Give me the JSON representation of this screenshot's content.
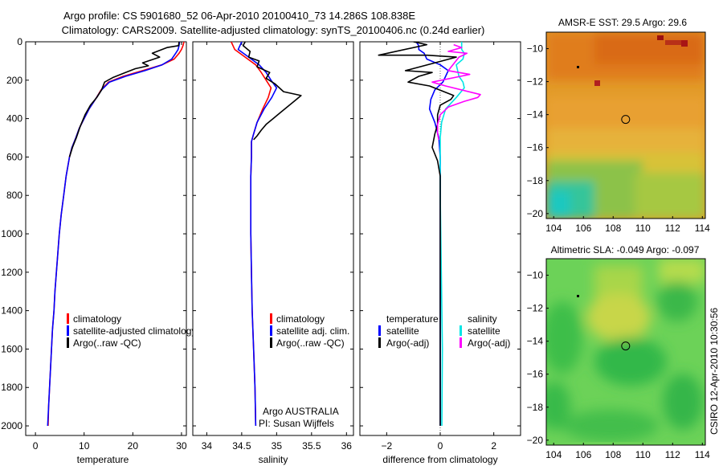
{
  "header": {
    "line1": "Argo profile: CS 5901680_52 06-Apr-2010 20100410_73 14.286S 108.838E",
    "line2": "Climatology: CARS2009. Satellite-adjusted climatology: synTS_20100406.nc (0.24d earlier)"
  },
  "colors": {
    "climatology": "#ff0000",
    "satellite": "#0000ff",
    "argo": "#000000",
    "sat_salinity": "#00e5e5",
    "argo_salinity": "#ff00ff"
  },
  "footer_credit": "CSIRO 12-Apr-2010 10:30:56",
  "chart_data": [
    {
      "type": "line",
      "xlabel": "temperature",
      "xlim": [
        -2,
        31
      ],
      "ylim": [
        2050,
        0
      ],
      "xticks": [
        0,
        10,
        20,
        30
      ],
      "yticks": [
        0,
        200,
        400,
        600,
        800,
        1000,
        1200,
        1400,
        1600,
        1800,
        2000
      ],
      "legend": [
        "climatology",
        "satellite-adjusted climatology",
        "Argo(..raw -QC)"
      ],
      "series": [
        {
          "name": "climatology",
          "color": "climatology",
          "points": [
            [
              30.5,
              0
            ],
            [
              30.3,
              20
            ],
            [
              30,
              40
            ],
            [
              29.5,
              60
            ],
            [
              28.5,
              90
            ],
            [
              26,
              120
            ],
            [
              22,
              150
            ],
            [
              18,
              180
            ],
            [
              15,
              210
            ],
            [
              13.5,
              250
            ],
            [
              12.3,
              300
            ],
            [
              11,
              350
            ],
            [
              10,
              400
            ],
            [
              9,
              450
            ],
            [
              8.3,
              500
            ],
            [
              7.5,
              550
            ],
            [
              7,
              600
            ],
            [
              6.3,
              700
            ],
            [
              5.8,
              800
            ],
            [
              5.3,
              900
            ],
            [
              4.9,
              1000
            ],
            [
              4.6,
              1100
            ],
            [
              4.3,
              1200
            ],
            [
              4,
              1300
            ],
            [
              3.8,
              1400
            ],
            [
              3.5,
              1500
            ],
            [
              3.3,
              1600
            ],
            [
              3.1,
              1700
            ],
            [
              2.9,
              1800
            ],
            [
              2.7,
              1900
            ],
            [
              2.6,
              2000
            ]
          ]
        },
        {
          "name": "satellite-adjusted climatology",
          "color": "satellite",
          "points": [
            [
              29.6,
              0
            ],
            [
              29.5,
              20
            ],
            [
              29.3,
              40
            ],
            [
              28.8,
              60
            ],
            [
              28,
              90
            ],
            [
              26,
              120
            ],
            [
              22.5,
              150
            ],
            [
              18.5,
              180
            ],
            [
              15.2,
              210
            ],
            [
              13.6,
              250
            ],
            [
              12.3,
              300
            ],
            [
              11,
              350
            ],
            [
              10,
              400
            ],
            [
              9,
              450
            ],
            [
              8.3,
              500
            ],
            [
              7.5,
              550
            ],
            [
              7,
              600
            ],
            [
              6.3,
              700
            ],
            [
              5.8,
              800
            ],
            [
              5.3,
              900
            ],
            [
              4.9,
              1000
            ],
            [
              4.6,
              1100
            ],
            [
              4.3,
              1200
            ],
            [
              4,
              1300
            ],
            [
              3.8,
              1400
            ],
            [
              3.5,
              1500
            ],
            [
              3.3,
              1600
            ],
            [
              3.1,
              1700
            ],
            [
              2.9,
              1800
            ],
            [
              2.7,
              1900
            ],
            [
              2.5,
              2000
            ]
          ]
        },
        {
          "name": "Argo(..raw -QC)",
          "color": "argo",
          "points": [
            [
              29.5,
              0
            ],
            [
              29.4,
              20
            ],
            [
              27,
              30
            ],
            [
              24,
              60
            ],
            [
              25.5,
              80
            ],
            [
              22,
              110
            ],
            [
              23.2,
              125
            ],
            [
              20.5,
              140
            ],
            [
              18.5,
              160
            ],
            [
              16,
              185
            ],
            [
              14.2,
              210
            ],
            [
              13.6,
              250
            ],
            [
              12.6,
              290
            ],
            [
              11.3,
              330
            ],
            [
              10.2,
              380
            ],
            [
              9.2,
              440
            ],
            [
              8.4,
              500
            ],
            [
              7.6,
              550
            ],
            [
              7,
              600
            ]
          ]
        }
      ]
    },
    {
      "type": "line",
      "xlabel": "salinity",
      "xlim": [
        33.8,
        36.1
      ],
      "ylim": [
        2050,
        0
      ],
      "xticks": [
        34,
        34.5,
        35,
        35.5,
        36
      ],
      "legend": [
        "climatology",
        "satellite adj. clim.",
        "Argo(..raw -QC)"
      ],
      "annotation": [
        "Argo AUSTRALIA",
        "PI: Susan Wijffels"
      ],
      "series": [
        {
          "name": "climatology",
          "color": "climatology",
          "points": [
            [
              34.35,
              0
            ],
            [
              34.4,
              40
            ],
            [
              34.55,
              80
            ],
            [
              34.7,
              120
            ],
            [
              34.78,
              160
            ],
            [
              34.85,
              200
            ],
            [
              34.92,
              240
            ],
            [
              34.88,
              290
            ],
            [
              34.8,
              350
            ],
            [
              34.72,
              420
            ],
            [
              34.67,
              480
            ],
            [
              34.64,
              520
            ],
            [
              34.64,
              600
            ],
            [
              34.63,
              700
            ],
            [
              34.63,
              800
            ],
            [
              34.63,
              1000
            ],
            [
              34.64,
              1200
            ],
            [
              34.65,
              1400
            ],
            [
              34.67,
              1600
            ],
            [
              34.69,
              1800
            ],
            [
              34.7,
              2000
            ]
          ]
        },
        {
          "name": "satellite adj. clim.",
          "color": "satellite",
          "points": [
            [
              34.5,
              0
            ],
            [
              34.45,
              40
            ],
            [
              34.6,
              80
            ],
            [
              34.75,
              120
            ],
            [
              34.85,
              160
            ],
            [
              34.92,
              200
            ],
            [
              35,
              240
            ],
            [
              34.93,
              290
            ],
            [
              34.82,
              350
            ],
            [
              34.72,
              420
            ],
            [
              34.67,
              480
            ],
            [
              34.64,
              520
            ],
            [
              34.64,
              600
            ],
            [
              34.63,
              700
            ],
            [
              34.63,
              800
            ],
            [
              34.63,
              1000
            ],
            [
              34.64,
              1200
            ],
            [
              34.65,
              1400
            ],
            [
              34.67,
              1600
            ],
            [
              34.69,
              1800
            ],
            [
              34.7,
              2000
            ]
          ]
        },
        {
          "name": "Argo(..raw -QC)",
          "color": "argo",
          "points": [
            [
              34.55,
              0
            ],
            [
              34.52,
              20
            ],
            [
              34.62,
              50
            ],
            [
              34.6,
              80
            ],
            [
              34.75,
              100
            ],
            [
              34.72,
              130
            ],
            [
              34.9,
              160
            ],
            [
              34.85,
              190
            ],
            [
              34.98,
              220
            ],
            [
              35.1,
              260
            ],
            [
              35.35,
              280
            ],
            [
              35.25,
              310
            ],
            [
              35.15,
              340
            ],
            [
              35.05,
              370
            ],
            [
              34.95,
              400
            ],
            [
              34.85,
              430
            ],
            [
              34.78,
              460
            ],
            [
              34.72,
              490
            ],
            [
              34.67,
              510
            ]
          ]
        }
      ]
    },
    {
      "type": "line",
      "xlabel": "difference from climatology",
      "xlim": [
        -3,
        3
      ],
      "ylim": [
        2050,
        0
      ],
      "xticks": [
        -2,
        0,
        2
      ],
      "legend_groups": [
        {
          "title": "temperature",
          "items": [
            "satellite",
            "Argo(-adj)"
          ]
        },
        {
          "title": "salinity",
          "items": [
            "satellite",
            "Argo(-adj)"
          ]
        }
      ],
      "series": [
        {
          "name": "satellite",
          "group": "temperature",
          "color": "satellite",
          "points": [
            [
              -0.9,
              0
            ],
            [
              -0.8,
              20
            ],
            [
              -0.8,
              40
            ],
            [
              -0.6,
              60
            ],
            [
              -0.5,
              90
            ],
            [
              0,
              120
            ],
            [
              0.3,
              150
            ],
            [
              0.2,
              180
            ],
            [
              0.1,
              210
            ],
            [
              -0.2,
              250
            ],
            [
              -0.35,
              300
            ],
            [
              -0.4,
              350
            ],
            [
              -0.2,
              420
            ],
            [
              -0.05,
              500
            ],
            [
              0,
              600
            ],
            [
              0,
              800
            ],
            [
              0,
              1000
            ],
            [
              0,
              1500
            ],
            [
              0,
              2000
            ]
          ]
        },
        {
          "name": "satellite",
          "group": "salinity",
          "color": "sat_salinity",
          "points": [
            [
              0.8,
              0
            ],
            [
              0.8,
              20
            ],
            [
              0.8,
              40
            ],
            [
              0.9,
              60
            ],
            [
              0.85,
              90
            ],
            [
              0.6,
              120
            ],
            [
              0.65,
              150
            ],
            [
              0.7,
              180
            ],
            [
              0.85,
              210
            ],
            [
              0.9,
              240
            ],
            [
              0.6,
              290
            ],
            [
              0.2,
              350
            ],
            [
              0.05,
              420
            ],
            [
              0,
              500
            ],
            [
              0,
              800
            ],
            [
              0.02,
              1000
            ],
            [
              0.05,
              1300
            ],
            [
              0.08,
              1600
            ],
            [
              0.06,
              2000
            ]
          ]
        },
        {
          "name": "Argo(-adj)",
          "group": "temperature",
          "color": "argo",
          "points": [
            [
              -1,
              0
            ],
            [
              -0.5,
              15
            ],
            [
              -2.3,
              70
            ],
            [
              -0.5,
              70
            ],
            [
              0.6,
              80
            ],
            [
              -1.3,
              150
            ],
            [
              -0.3,
              160
            ],
            [
              -0.8,
              180
            ],
            [
              -1.2,
              210
            ],
            [
              -0.4,
              230
            ],
            [
              0.5,
              280
            ],
            [
              0.4,
              300
            ],
            [
              0,
              330
            ],
            [
              -0.1,
              380
            ],
            [
              -0.1,
              430
            ],
            [
              -0.2,
              480
            ],
            [
              -0.3,
              550
            ],
            [
              -0.1,
              620
            ],
            [
              0,
              700
            ],
            [
              0,
              1000
            ],
            [
              0,
              1400
            ],
            [
              0,
              1600
            ],
            [
              0,
              2000
            ]
          ]
        },
        {
          "name": "Argo(-adj)",
          "group": "salinity",
          "color": "argo_salinity",
          "points": [
            [
              0.5,
              15
            ],
            [
              0.8,
              30
            ],
            [
              0.3,
              50
            ],
            [
              1,
              60
            ],
            [
              0.7,
              80
            ],
            [
              0.3,
              150
            ],
            [
              1.1,
              170
            ],
            [
              -0.3,
              210
            ],
            [
              0.2,
              230
            ],
            [
              1.5,
              275
            ],
            [
              1.4,
              290
            ],
            [
              0.9,
              310
            ],
            [
              0.3,
              340
            ],
            [
              0,
              380
            ],
            [
              -0.1,
              430
            ],
            [
              -0.1,
              480
            ],
            [
              -0.05,
              510
            ]
          ]
        }
      ]
    },
    {
      "type": "heatmap",
      "title": "AMSR-E SST: 29.5 Argo: 29.6",
      "xlim": [
        103.5,
        114.2
      ],
      "ylim": [
        -20.3,
        -9
      ],
      "xticks": [
        104,
        106,
        108,
        110,
        112,
        114
      ],
      "yticks": [
        -10,
        -12,
        -14,
        -16,
        -18,
        -20
      ],
      "marker": {
        "lon": 108.84,
        "lat": -14.29
      }
    },
    {
      "type": "heatmap",
      "title": "Altimetric SLA: -0.049 Argo: -0.097",
      "xlim": [
        103.5,
        114.2
      ],
      "ylim": [
        -20.3,
        -9
      ],
      "xticks": [
        104,
        106,
        108,
        110,
        112,
        114
      ],
      "yticks": [
        -10,
        -12,
        -14,
        -16,
        -18,
        -20
      ],
      "marker": {
        "lon": 108.84,
        "lat": -14.29
      }
    }
  ]
}
